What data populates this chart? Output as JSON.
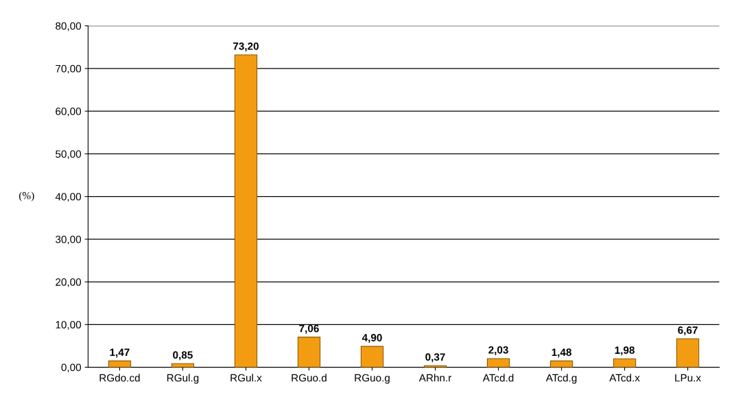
{
  "chart_data": {
    "type": "bar",
    "ylabel": "(%)",
    "categories": [
      "RGdo.cd",
      "RGul.g",
      "RGul.x",
      "RGuo.d",
      "RGuo.g",
      "ARhn.r",
      "ATcd.d",
      "ATcd.g",
      "ATcd.x",
      "LPu.x"
    ],
    "values": [
      1.47,
      0.85,
      73.2,
      7.06,
      4.9,
      0.37,
      2.03,
      1.48,
      1.98,
      6.67
    ],
    "value_labels": [
      "1,47",
      "0,85",
      "73,20",
      "7,06",
      "4,90",
      "0,37",
      "2,03",
      "1,48",
      "1,98",
      "6,67"
    ],
    "color": "#f39c12",
    "ylim": [
      0,
      80
    ],
    "yticks": [
      {
        "value": 0,
        "label": "0,00"
      },
      {
        "value": 10,
        "label": "10,00"
      },
      {
        "value": 20,
        "label": "20,00"
      },
      {
        "value": 30,
        "label": "30,00"
      },
      {
        "value": 40,
        "label": "40,00"
      },
      {
        "value": 50,
        "label": "50,00"
      },
      {
        "value": 60,
        "label": "60,00"
      },
      {
        "value": 70,
        "label": "70,00"
      },
      {
        "value": 80,
        "label": "80,00"
      }
    ],
    "grid": "y"
  }
}
